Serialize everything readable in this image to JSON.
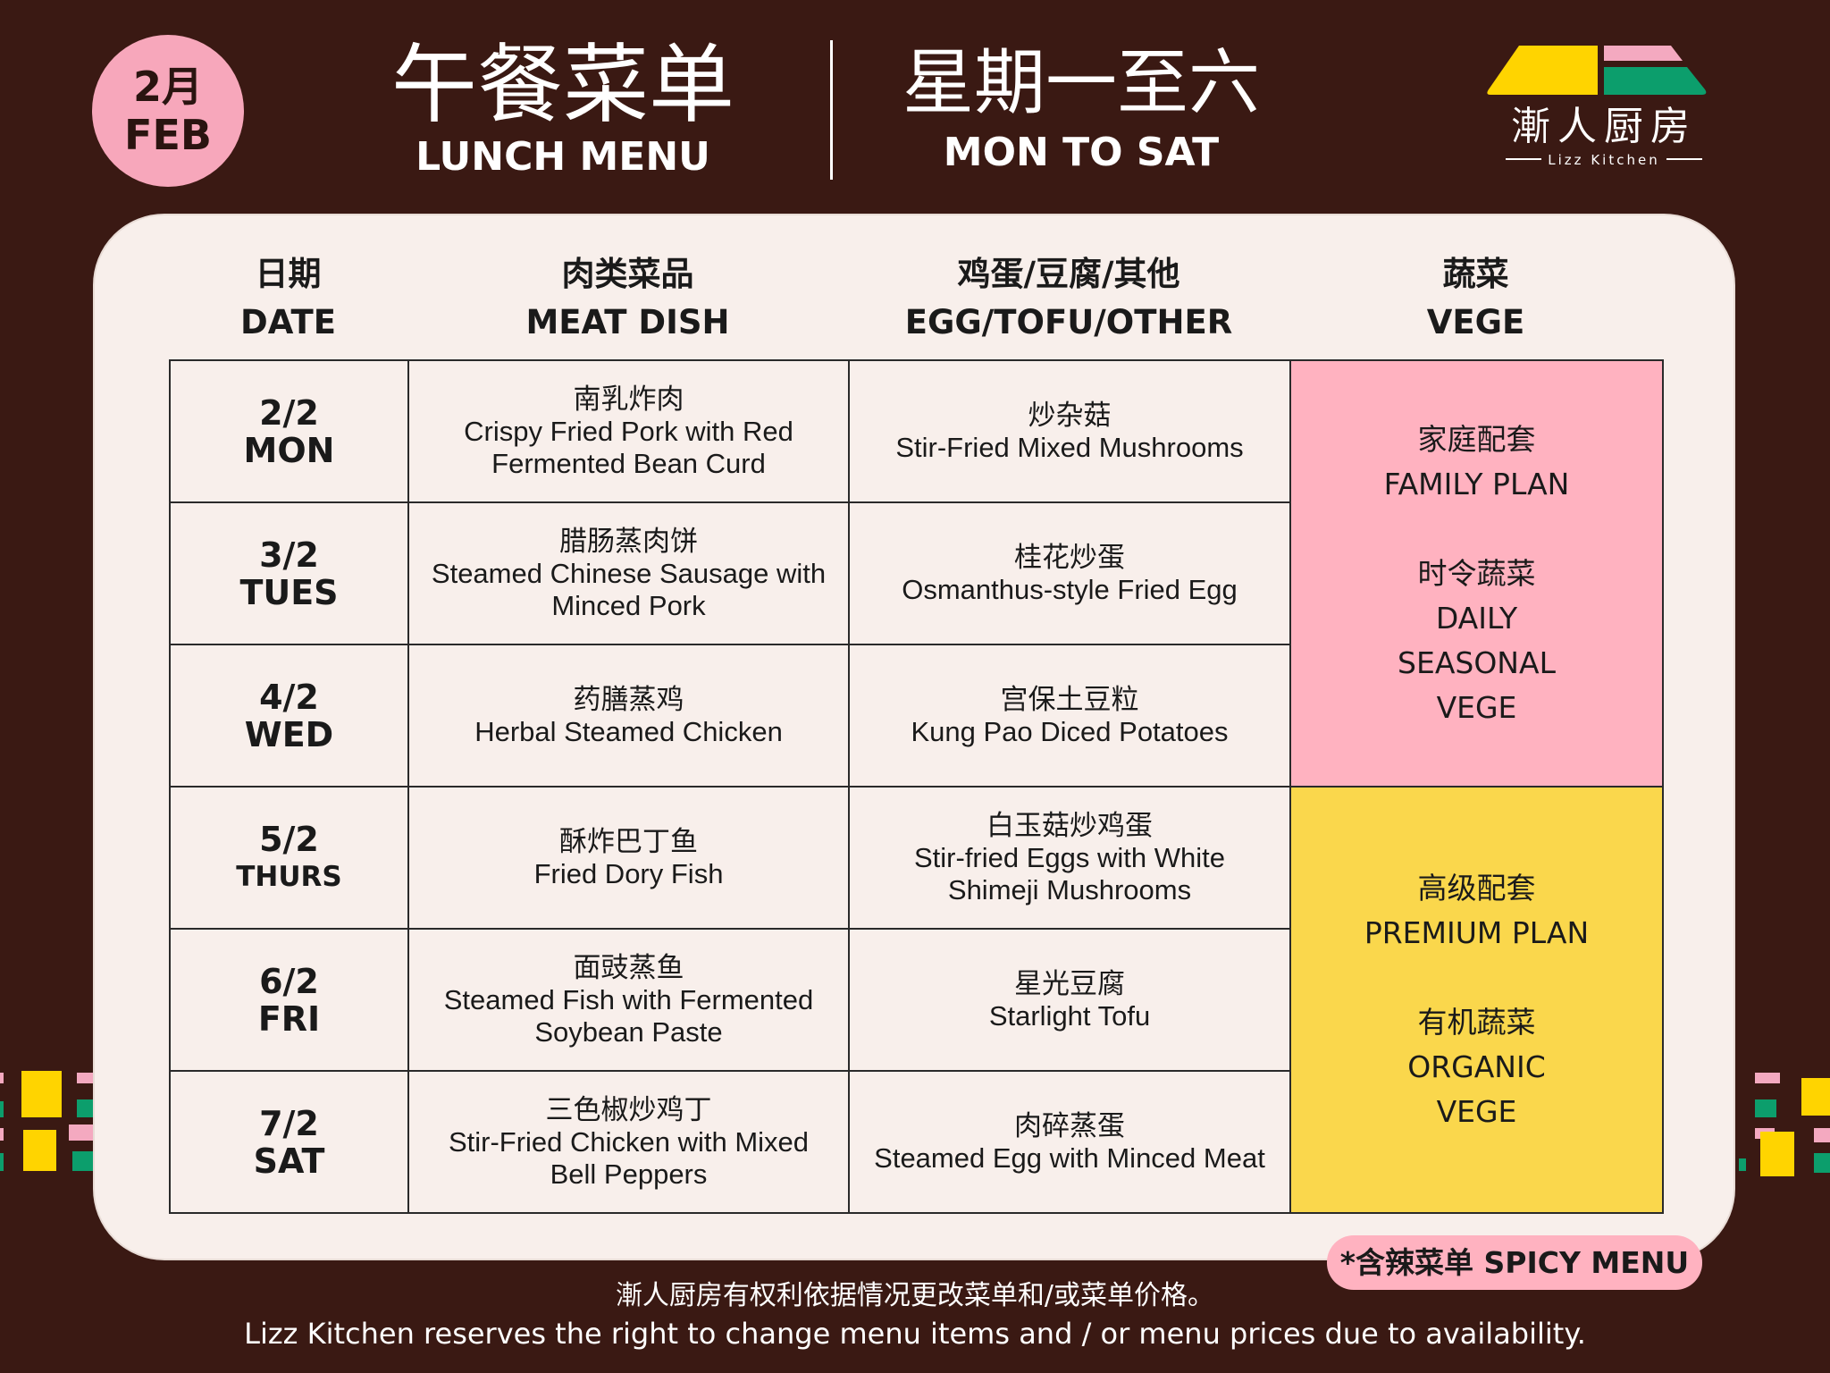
{
  "badge": {
    "month_cn": "2月",
    "month_en": "FEB"
  },
  "title": {
    "cn": "午餐菜单",
    "en": "LUNCH MENU",
    "days_cn": "星期一至六",
    "days_en": "MON TO SAT"
  },
  "logo": {
    "cn": "漸人厨房",
    "en": "Lizz Kitchen",
    "colors": [
      "#ffd400",
      "#f4a9c0",
      "#0c9e6c"
    ]
  },
  "headers": [
    {
      "cn": "日期",
      "en": "DATE"
    },
    {
      "cn": "肉类菜品",
      "en": "MEAT DISH"
    },
    {
      "cn": "鸡蛋/豆腐/其他",
      "en": "EGG/TOFU/OTHER"
    },
    {
      "cn": "蔬菜",
      "en": "VEGE"
    }
  ],
  "rows": [
    {
      "date": "2/2",
      "day": "MON",
      "meat_cn": "南乳炸肉",
      "meat_en": "Crispy Fried Pork with Red Fermented Bean Curd",
      "other_cn": "炒杂菇",
      "other_en": "Stir-Fried Mixed Mushrooms"
    },
    {
      "date": "3/2",
      "day": "TUES",
      "meat_cn": "腊肠蒸肉饼",
      "meat_en": "Steamed Chinese Sausage with Minced Pork",
      "other_cn": "桂花炒蛋",
      "other_en": "Osmanthus-style Fried Egg"
    },
    {
      "date": "4/2",
      "day": "WED",
      "meat_cn": "药膳蒸鸡",
      "meat_en": "Herbal Steamed Chicken",
      "other_cn": "宫保土豆粒",
      "other_en": "Kung Pao Diced Potatoes"
    },
    {
      "date": "5/2",
      "day": "THURS",
      "meat_cn": "酥炸巴丁鱼",
      "meat_en": "Fried Dory Fish",
      "other_cn": "白玉菇炒鸡蛋",
      "other_en": "Stir-fried Eggs with White Shimeji Mushrooms"
    },
    {
      "date": "6/2",
      "day": "FRI",
      "meat_cn": "面豉蒸鱼",
      "meat_en": "Steamed Fish with Fermented Soybean Paste",
      "other_cn": "星光豆腐",
      "other_en": "Starlight Tofu"
    },
    {
      "date": "7/2",
      "day": "SAT",
      "meat_cn": "三色椒炒鸡丁",
      "meat_en": "Stir-Fried Chicken with Mixed Bell Peppers",
      "other_cn": "肉碎蒸蛋",
      "other_en": "Steamed Egg with Minced Meat"
    }
  ],
  "vege": {
    "family": {
      "plan_cn": "家庭配套",
      "plan_en": "FAMILY PLAN",
      "veg_cn": "时令蔬菜",
      "veg_en1": "DAILY",
      "veg_en2": "SEASONAL",
      "veg_en3": "VEGE",
      "color": "#ffb2c0"
    },
    "premium": {
      "plan_cn": "高级配套",
      "plan_en": "PREMIUM PLAN",
      "veg_cn": "有机蔬菜",
      "veg_en1": "ORGANIC",
      "veg_en2": "VEGE",
      "color": "#fad74c"
    }
  },
  "spicy": "*含辣菜单 SPICY MENU",
  "footer": {
    "cn": "漸人厨房有权利依据情况更改菜单和/或菜单价格。",
    "en": "Lizz Kitchen reserves the right to change menu items and / or menu prices due to availability."
  }
}
